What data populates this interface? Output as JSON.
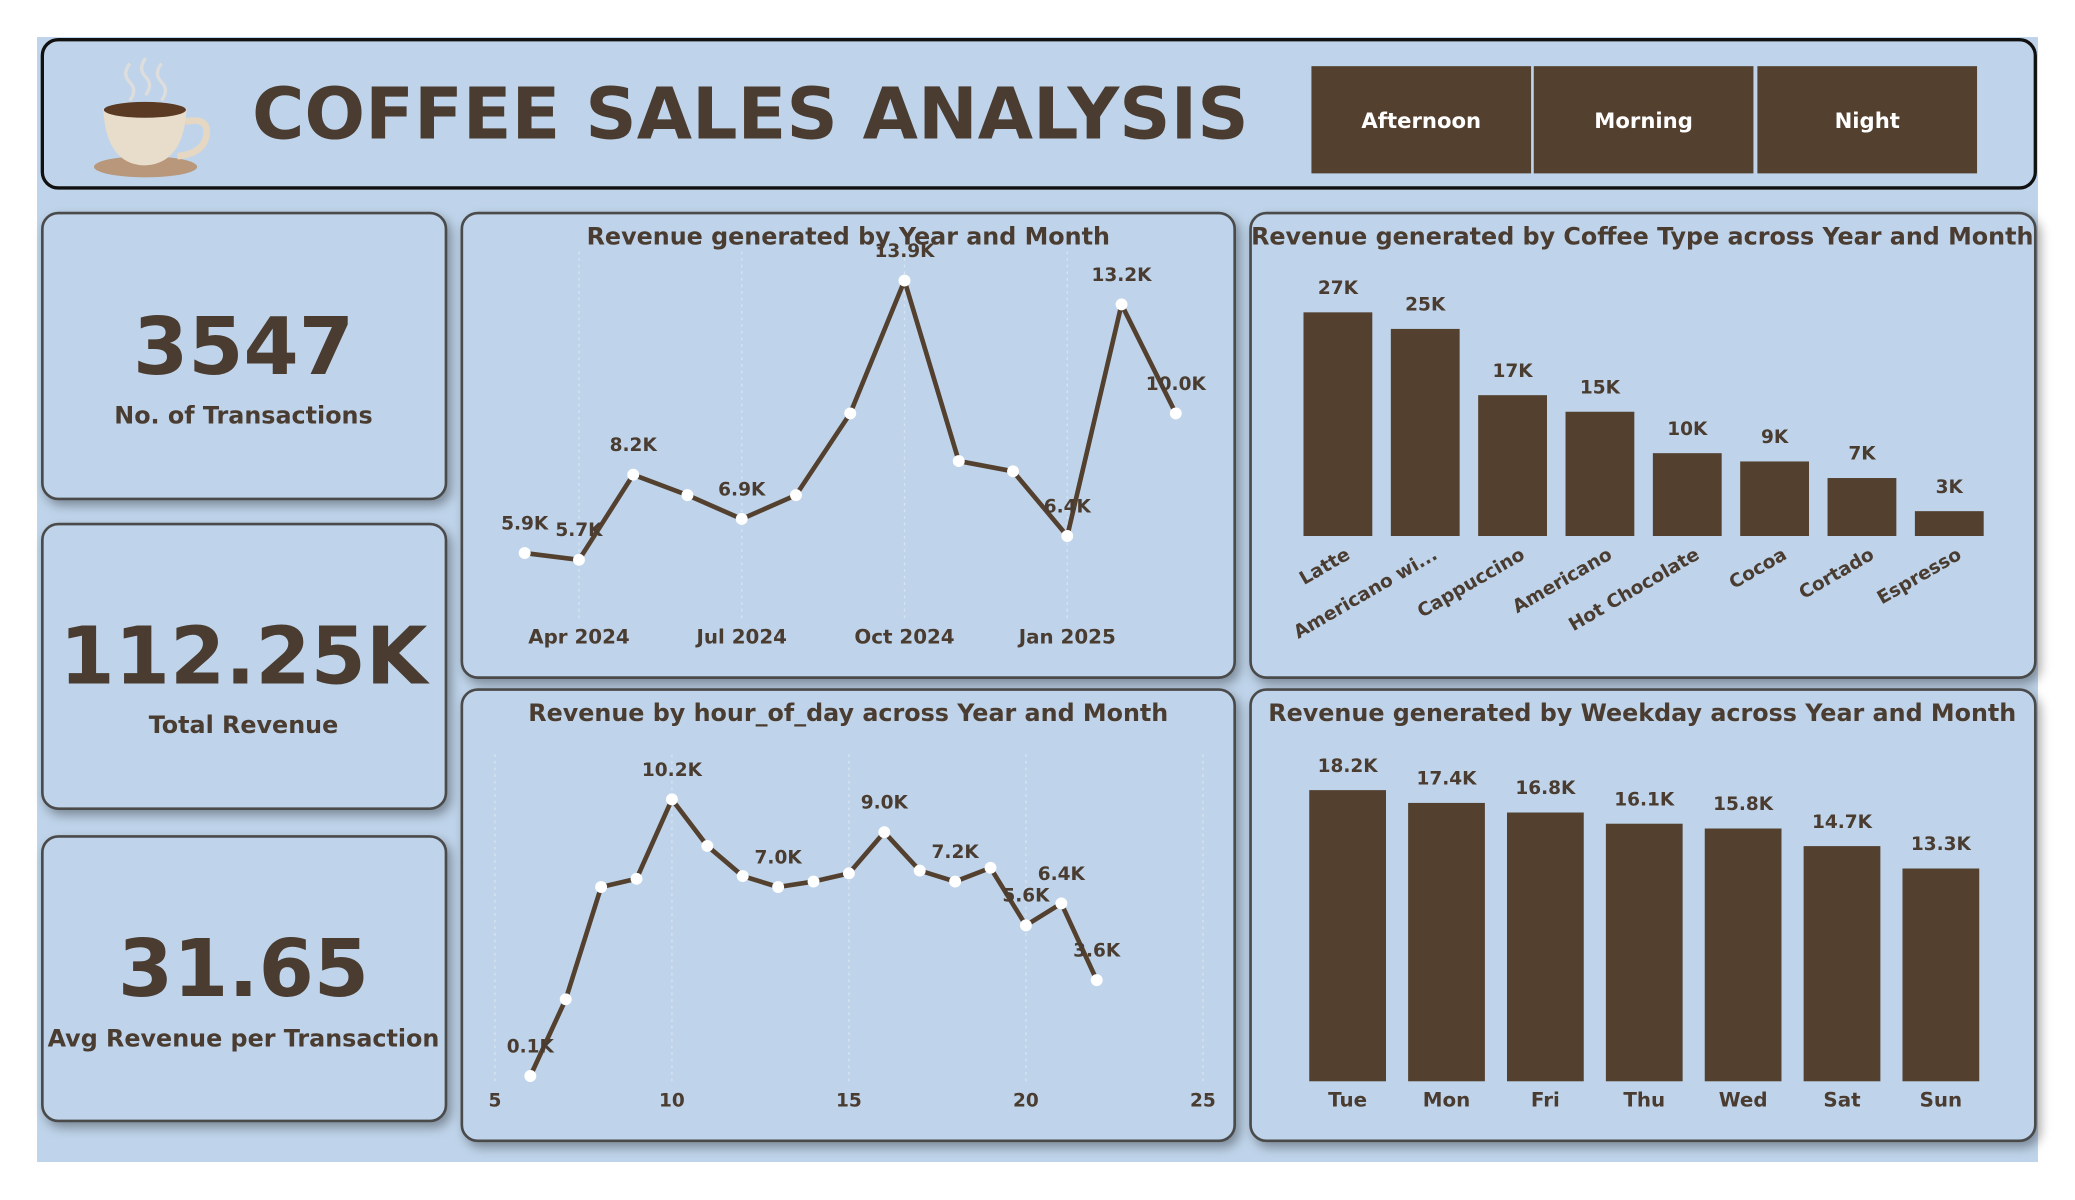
{
  "header": {
    "title": "COFFEE SALES ANALYSIS",
    "slicer": [
      "Afternoon",
      "Morning",
      "Night"
    ]
  },
  "kpis": [
    {
      "value": "3547",
      "label": "No. of Transactions"
    },
    {
      "value": "112.25K",
      "label": "Total Revenue"
    },
    {
      "value": "31.65",
      "label": "Avg Revenue per Transaction"
    }
  ],
  "chart_data": [
    {
      "type": "line",
      "title": "Revenue generated by Year and Month",
      "categories": [
        null,
        "Apr 2024",
        null,
        null,
        "Jul 2024",
        null,
        null,
        "Oct 2024",
        null,
        null,
        "Jan 2025",
        null,
        null
      ],
      "values": [
        5900,
        5700,
        8200,
        7600,
        6900,
        7600,
        10000,
        13900,
        8600,
        8300,
        6400,
        13200,
        10000
      ],
      "value_labels": [
        "5.9K",
        "5.7K",
        "8.2K",
        null,
        "6.9K",
        null,
        null,
        "13.9K",
        null,
        null,
        "6.4K",
        "13.2K",
        "10.0K"
      ],
      "color": "#53402f",
      "grid": true
    },
    {
      "type": "bar",
      "title": "Revenue generated by Coffee Type across Year and Month",
      "categories": [
        "Latte",
        "Americano wi...",
        "Cappuccino",
        "Americano",
        "Hot Chocolate",
        "Cocoa",
        "Cortado",
        "Espresso"
      ],
      "values": [
        27000,
        25000,
        17000,
        15000,
        10000,
        9000,
        7000,
        3000
      ],
      "value_labels": [
        "27K",
        "25K",
        "17K",
        "15K",
        "10K",
        "9K",
        "7K",
        "3K"
      ],
      "color": "#53402f",
      "rotate_labels": true
    },
    {
      "type": "line",
      "title": "Revenue by hour_of_day across Year and Month",
      "x": [
        6,
        7,
        8,
        9,
        10,
        11,
        12,
        13,
        14,
        15,
        16,
        17,
        18,
        19,
        20,
        21,
        22
      ],
      "values": [
        100,
        2900,
        7000,
        7300,
        10200,
        8500,
        7400,
        7000,
        7200,
        7500,
        9000,
        7600,
        7200,
        7700,
        5600,
        6400,
        3600
      ],
      "value_labels": [
        "0.1K",
        null,
        null,
        null,
        "10.2K",
        null,
        null,
        "7.0K",
        null,
        null,
        "9.0K",
        null,
        "7.2K",
        null,
        "5.6K",
        "6.4K",
        "3.6K"
      ],
      "xlim": [
        5,
        25
      ],
      "xticks": [
        5,
        10,
        15,
        20,
        25
      ],
      "color": "#53402f",
      "grid": true
    },
    {
      "type": "bar",
      "title": "Revenue generated by Weekday across Year and Month",
      "categories": [
        "Tue",
        "Mon",
        "Fri",
        "Thu",
        "Wed",
        "Sat",
        "Sun"
      ],
      "values": [
        18200,
        17400,
        16800,
        16100,
        15800,
        14700,
        13300
      ],
      "value_labels": [
        "18.2K",
        "17.4K",
        "16.8K",
        "16.1K",
        "15.8K",
        "14.7K",
        "13.3K"
      ],
      "color": "#53402f",
      "rotate_labels": false
    }
  ]
}
